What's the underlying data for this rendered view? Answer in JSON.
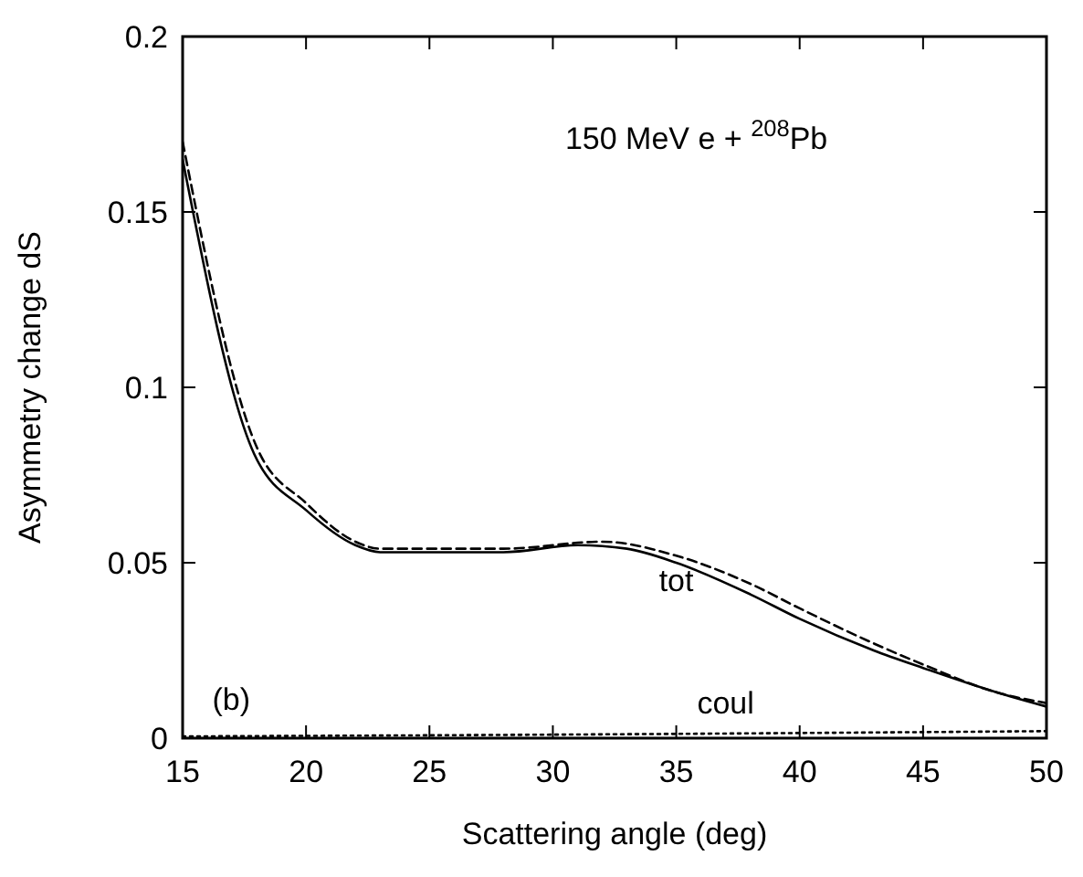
{
  "chart_data": {
    "type": "line",
    "xlabel": "Scattering angle  (deg)",
    "ylabel": "Asymmetry change  dS",
    "xlim": [
      15,
      50
    ],
    "ylim": [
      0,
      0.2
    ],
    "xticks": [
      15,
      20,
      25,
      30,
      35,
      40,
      45,
      50
    ],
    "yticks": [
      0,
      0.05,
      0.1,
      0.15,
      0.2
    ],
    "grid": false,
    "marker": "none",
    "series": [
      {
        "color": "#000000",
        "line_style": "solid",
        "x": [
          15,
          17.9,
          20,
          22,
          23,
          25,
          28,
          31,
          33,
          35,
          38,
          40,
          43,
          45,
          48,
          50
        ],
        "values": [
          0.165,
          0.081,
          0.065,
          0.055,
          0.053,
          0.053,
          0.053,
          0.055,
          0.054,
          0.05,
          0.041,
          0.034,
          0.025,
          0.02,
          0.013,
          0.009
        ]
      },
      {
        "color": "#000000",
        "line_style": "dashed",
        "x": [
          15,
          18,
          20,
          22,
          23,
          25,
          28,
          32,
          35,
          38,
          40,
          43,
          45,
          48,
          50
        ],
        "values": [
          0.17,
          0.083,
          0.067,
          0.056,
          0.054,
          0.054,
          0.054,
          0.056,
          0.052,
          0.044,
          0.037,
          0.027,
          0.021,
          0.013,
          0.01
        ]
      },
      {
        "color": "#000000",
        "line_style": "dotted",
        "x": [
          15,
          30,
          50
        ],
        "values": [
          0.0005,
          0.001,
          0.002
        ]
      }
    ],
    "annotations": [
      "150 MeV  e + $^{208}$Pb",
      "(b)",
      "tot",
      "coul"
    ]
  }
}
